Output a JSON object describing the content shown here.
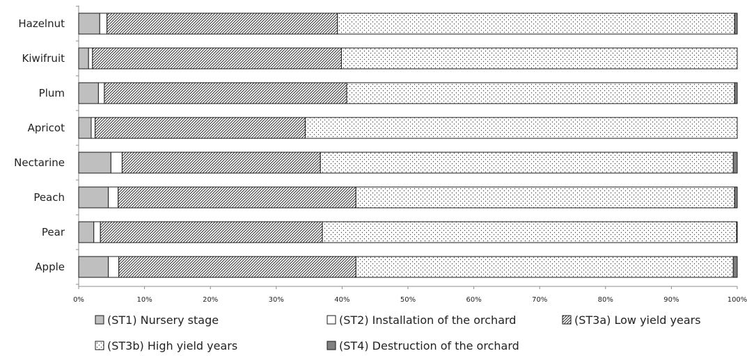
{
  "chart_data": {
    "type": "bar",
    "orientation": "horizontal",
    "stacked": "percent",
    "categories": [
      "Hazelnut",
      "Kiwifruit",
      "Plum",
      "Apricot",
      "Nectarine",
      "Peach",
      "Pear",
      "Apple"
    ],
    "series": [
      {
        "name": "(ST1) Nursery stage",
        "color": "#bfbfbf",
        "pattern": "solid",
        "values": [
          3.2,
          1.5,
          3.0,
          1.9,
          4.9,
          4.5,
          2.3,
          4.5
        ]
      },
      {
        "name": "(ST2) Installation of the orchard",
        "color": "#ffffff",
        "pattern": "solid",
        "values": [
          1.1,
          0.6,
          0.9,
          0.6,
          1.7,
          1.5,
          1.0,
          1.6
        ]
      },
      {
        "name": "(ST3a) Low yield years",
        "color": "#ffffff",
        "pattern": "diagonal-hatch",
        "values": [
          35.0,
          37.8,
          36.8,
          31.9,
          30.1,
          36.1,
          33.7,
          36.0
        ]
      },
      {
        "name": "(ST3b) High yield years",
        "color": "#ffffff",
        "pattern": "dots",
        "values": [
          60.3,
          60.1,
          58.9,
          65.6,
          62.7,
          57.5,
          62.9,
          57.3
        ]
      },
      {
        "name": "(ST4) Destruction of the orchard",
        "color": "#808080",
        "pattern": "solid",
        "values": [
          0.4,
          0.0,
          0.4,
          0.0,
          0.6,
          0.4,
          0.1,
          0.6
        ]
      }
    ],
    "xlim": [
      0,
      100
    ],
    "x_ticks": [
      "0%",
      "10%",
      "20%",
      "30%",
      "40%",
      "50%",
      "60%",
      "70%",
      "80%",
      "90%",
      "100%"
    ],
    "grid": false,
    "legend_position": "bottom",
    "title": "",
    "xlabel": "",
    "ylabel": ""
  }
}
